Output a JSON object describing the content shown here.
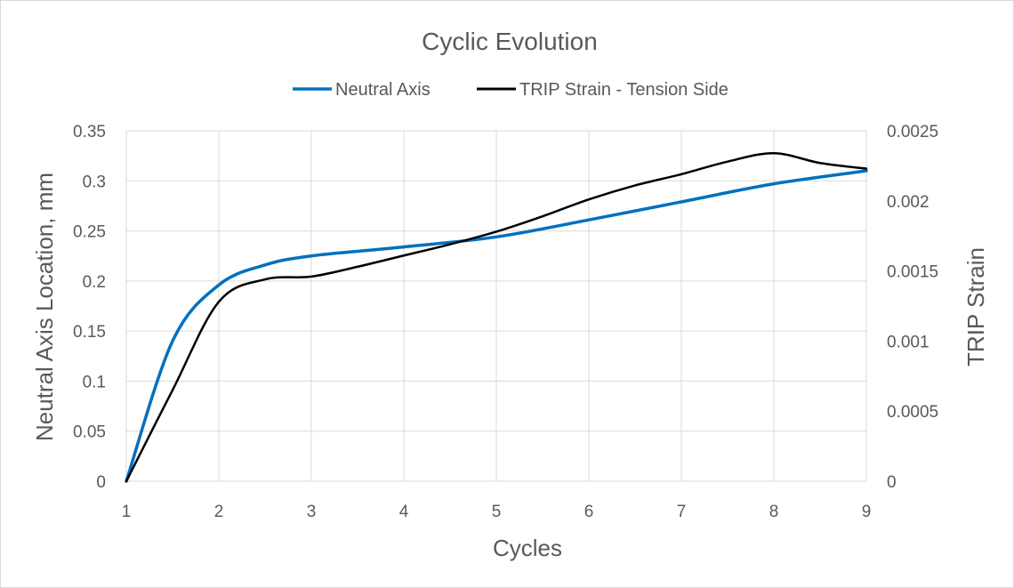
{
  "chart_data": {
    "type": "line",
    "title": "Cyclic Evolution",
    "xlabel": "Cycles",
    "ylabel": "Neutral Axis Location, mm",
    "y2label": "TRIP Strain",
    "xlim": [
      1,
      9
    ],
    "ylim": [
      0,
      0.35
    ],
    "y2lim": [
      0,
      0.0025
    ],
    "grid": true,
    "legend_position": "top",
    "x_ticks": [
      "1",
      "2",
      "3",
      "4",
      "5",
      "6",
      "7",
      "8",
      "9"
    ],
    "y_ticks": [
      "0",
      "0.05",
      "0.1",
      "0.15",
      "0.2",
      "0.25",
      "0.3",
      "0.35"
    ],
    "y2_ticks": [
      "0",
      "0.0005",
      "0.001",
      "0.0015",
      "0.002",
      "0.0025"
    ],
    "series": [
      {
        "name": "Neutral Axis",
        "axis": "left",
        "color": "#0070c0",
        "x": [
          1,
          1.5,
          2,
          2.5,
          3,
          4,
          5,
          6,
          7,
          8,
          9
        ],
        "values": [
          0,
          0.14,
          0.196,
          0.216,
          0.225,
          0.234,
          0.244,
          0.261,
          0.279,
          0.297,
          0.31
        ]
      },
      {
        "name": "TRIP Strain - Tension Side",
        "axis": "right",
        "color": "#000000",
        "x": [
          1,
          1.5,
          2,
          2.5,
          3,
          3.5,
          4,
          4.5,
          5,
          5.5,
          6,
          6.5,
          7,
          7.5,
          8,
          8.5,
          9
        ],
        "values": [
          0,
          0.00065,
          0.00128,
          0.00144,
          0.00146,
          0.00153,
          0.00161,
          0.00169,
          0.00178,
          0.00189,
          0.00201,
          0.00211,
          0.00219,
          0.00228,
          0.00234,
          0.00227,
          0.00223
        ]
      }
    ]
  }
}
